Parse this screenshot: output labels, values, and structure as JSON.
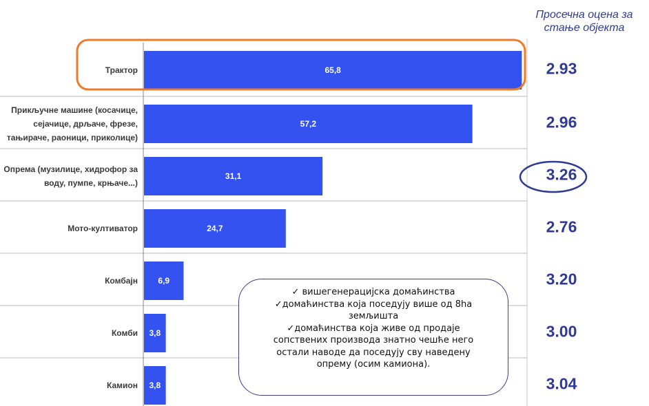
{
  "chart_data": {
    "type": "bar",
    "orientation": "horizontal",
    "categories": [
      [
        "Трактор"
      ],
      [
        "Прикључне машине (косачице,",
        "сејачице, дрљаче, фрезе,",
        "тањираче, раоници, приколице)"
      ],
      [
        "Опрема (музилице, хидрофор за",
        "воду, пумпе, крњаче...)"
      ],
      [
        "Мото-култиватор"
      ],
      [
        "Комбајн"
      ],
      [
        "Комби"
      ],
      [
        "Камион"
      ]
    ],
    "values": [
      65.8,
      57.2,
      31.1,
      24.7,
      6.9,
      3.8,
      3.8
    ],
    "value_labels": [
      "65,8",
      "57,2",
      "31,1",
      "24,7",
      "6,9",
      "3,8",
      "3,8"
    ],
    "xlim": [
      0,
      66
    ],
    "grid": "horizontal separators",
    "bar_color": "#3352f0",
    "ratings_title": [
      "Просечна оцена за",
      "стање објекта"
    ],
    "ratings": [
      "2.93",
      "2.96",
      "3.26",
      "2.76",
      "3.20",
      "3.00",
      "3.04"
    ],
    "highlighted_category_index": 0,
    "highlight_color": "#ef7a2a",
    "circled_rating_index": 2,
    "ratings_color": "#2e3a96"
  },
  "note": {
    "lines": [
      "✓ вишегенерацијска домаћинства",
      "✓домаћинства која поседују више од 8ha",
      "земљишта",
      "✓домаћинства која живе од продаје",
      "сопствених производа знатно чешће него",
      "остали наводе да поседују сву наведену",
      "опрему (осим камиона)."
    ]
  }
}
